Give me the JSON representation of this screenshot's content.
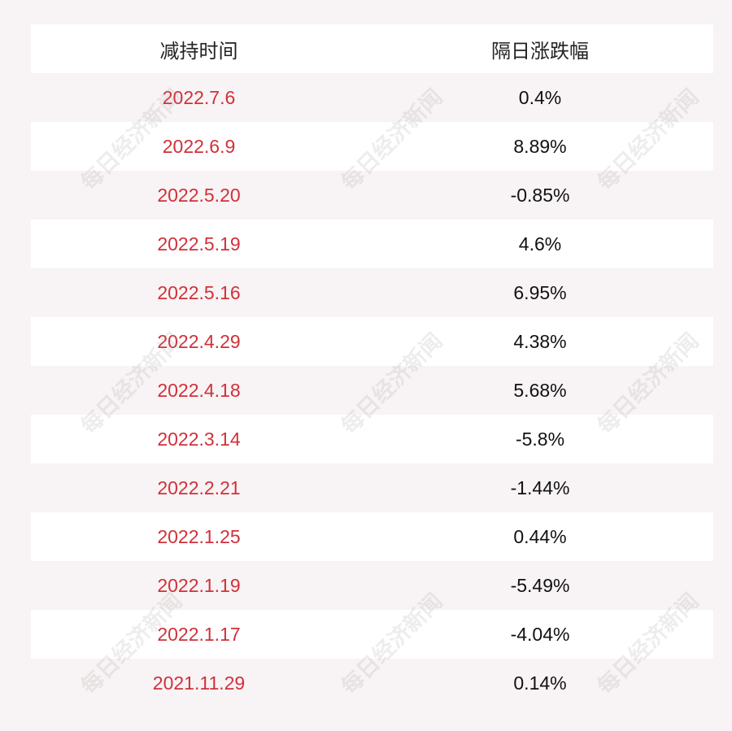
{
  "table": {
    "header": [
      "减持时间",
      "隔日涨跌幅"
    ],
    "rows": [
      [
        "2022.7.6",
        "0.4%"
      ],
      [
        "2022.6.9",
        "8.89%"
      ],
      [
        "2022.5.20",
        "-0.85%"
      ],
      [
        "2022.5.19",
        "4.6%"
      ],
      [
        "2022.5.16",
        "6.95%"
      ],
      [
        "2022.4.29",
        "4.38%"
      ],
      [
        "2022.4.18",
        "5.68%"
      ],
      [
        "2022.3.14",
        "-5.8%"
      ],
      [
        "2022.2.21",
        "-1.44%"
      ],
      [
        "2022.1.25",
        "0.44%"
      ],
      [
        "2022.1.19",
        "-5.49%"
      ],
      [
        "2022.1.17",
        "-4.04%"
      ],
      [
        "2021.11.29",
        "0.14%"
      ]
    ]
  },
  "watermark": "每日经济新闻"
}
